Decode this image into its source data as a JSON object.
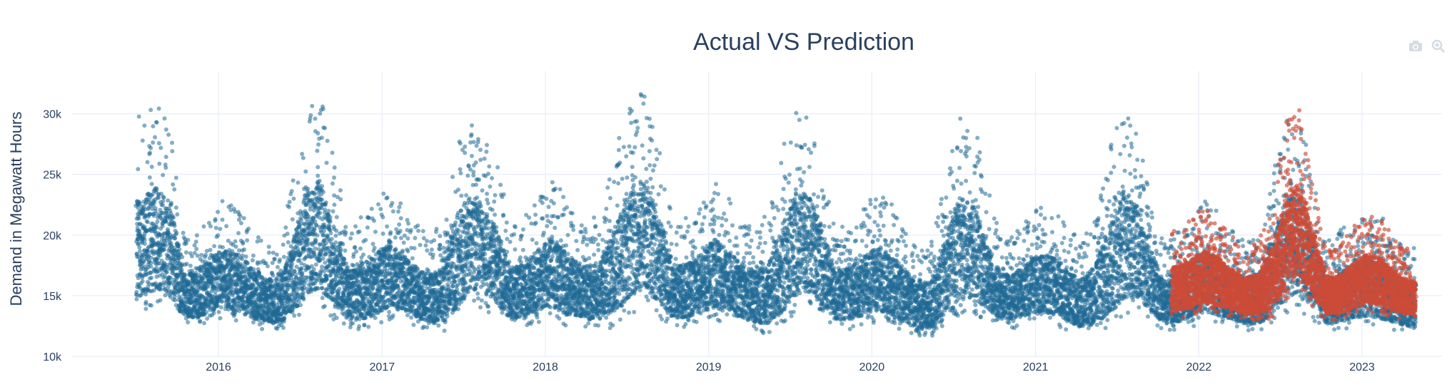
{
  "chart_data": {
    "type": "scatter",
    "title": "Actual VS Prediction",
    "xlabel": "",
    "ylabel": "Demand in Megawatt Hours",
    "x_tick_labels": [
      "2016",
      "2017",
      "2018",
      "2019",
      "2020",
      "2021",
      "2022",
      "2023"
    ],
    "y_tick_labels": [
      "10k",
      "15k",
      "20k",
      "25k",
      "30k"
    ],
    "xlim": [
      "2015-01-01",
      "2023-12-31"
    ],
    "ylim": [
      10000,
      33500
    ],
    "grid": true,
    "legend": "none",
    "colors": {
      "actual": "#1f6a96",
      "prediction": "#cc4b37"
    },
    "series": [
      {
        "role": "actual",
        "x_range": [
          "2015-07-01",
          "2023-05-01"
        ],
        "monthly_envelope": {
          "x": [
            "2015-07",
            "2015-08",
            "2015-09",
            "2015-10",
            "2015-11",
            "2015-12",
            "2016-01",
            "2016-02",
            "2016-03",
            "2016-04",
            "2016-05",
            "2016-06",
            "2016-07",
            "2016-08",
            "2016-09",
            "2016-10",
            "2016-11",
            "2016-12",
            "2017-01",
            "2017-02",
            "2017-03",
            "2017-04",
            "2017-05",
            "2017-06",
            "2017-07",
            "2017-08",
            "2017-09",
            "2017-10",
            "2017-11",
            "2017-12",
            "2018-01",
            "2018-02",
            "2018-03",
            "2018-04",
            "2018-05",
            "2018-06",
            "2018-07",
            "2018-08",
            "2018-09",
            "2018-10",
            "2018-11",
            "2018-12",
            "2019-01",
            "2019-02",
            "2019-03",
            "2019-04",
            "2019-05",
            "2019-06",
            "2019-07",
            "2019-08",
            "2019-09",
            "2019-10",
            "2019-11",
            "2019-12",
            "2020-01",
            "2020-02",
            "2020-03",
            "2020-04",
            "2020-05",
            "2020-06",
            "2020-07",
            "2020-08",
            "2020-09",
            "2020-10",
            "2020-11",
            "2020-12",
            "2021-01",
            "2021-02",
            "2021-03",
            "2021-04",
            "2021-05",
            "2021-06",
            "2021-07",
            "2021-08",
            "2021-09",
            "2021-10",
            "2021-11",
            "2021-12",
            "2022-01",
            "2022-02",
            "2022-03",
            "2022-04",
            "2022-05",
            "2022-06",
            "2022-07",
            "2022-08",
            "2022-09",
            "2022-10",
            "2022-11",
            "2022-12",
            "2023-01",
            "2023-02",
            "2023-03",
            "2023-04"
          ],
          "low": [
            13500,
            14000,
            13500,
            12500,
            12500,
            12800,
            13000,
            12800,
            12300,
            12200,
            12000,
            12500,
            13500,
            14000,
            13000,
            12300,
            12200,
            12500,
            13000,
            12800,
            12500,
            12000,
            11900,
            12500,
            14000,
            14000,
            13000,
            12300,
            12500,
            12800,
            13000,
            12500,
            12500,
            12200,
            12100,
            12500,
            13500,
            14000,
            13000,
            12300,
            12400,
            12800,
            13000,
            12600,
            12400,
            12000,
            11800,
            12300,
            13500,
            14000,
            13000,
            12200,
            12200,
            12500,
            12800,
            12400,
            11900,
            11600,
            11500,
            12000,
            13000,
            13500,
            12800,
            12200,
            12300,
            12500,
            12800,
            12500,
            12000,
            11800,
            11800,
            12200,
            13000,
            13500,
            12800,
            12000,
            12100,
            12400,
            12700,
            12500,
            12200,
            12000,
            11900,
            12300,
            13000,
            13800,
            12800,
            12000,
            12100,
            12300,
            12500,
            12200,
            12000,
            11800
          ],
          "high": [
            30000,
            31000,
            29500,
            20000,
            20500,
            22000,
            23000,
            22500,
            21000,
            19500,
            19000,
            24500,
            31000,
            32000,
            26000,
            21000,
            21500,
            22500,
            24000,
            22500,
            21000,
            20000,
            21000,
            28000,
            29500,
            28500,
            26000,
            20500,
            21500,
            23000,
            25000,
            23000,
            21500,
            21000,
            23500,
            28000,
            31500,
            31800,
            27000,
            21000,
            21500,
            22500,
            24500,
            23000,
            21500,
            20500,
            22000,
            27000,
            30500,
            30000,
            25000,
            20500,
            21000,
            22500,
            23500,
            22500,
            21000,
            19000,
            19500,
            25000,
            30500,
            29500,
            24000,
            20000,
            20500,
            21500,
            22500,
            22000,
            20500,
            19500,
            21500,
            27000,
            31000,
            29000,
            23000,
            19500,
            20500,
            21500,
            23000,
            22000,
            20500,
            19500,
            20500,
            25000,
            30500,
            29500,
            25000,
            19500,
            20500,
            21500,
            22000,
            21500,
            20000,
            19000
          ]
        }
      },
      {
        "role": "prediction",
        "x_range": [
          "2021-11-01",
          "2023-05-01"
        ],
        "monthly_envelope": {
          "x": [
            "2021-11",
            "2021-12",
            "2022-01",
            "2022-02",
            "2022-03",
            "2022-04",
            "2022-05",
            "2022-06",
            "2022-07",
            "2022-08",
            "2022-09",
            "2022-10",
            "2022-11",
            "2022-12",
            "2023-01",
            "2023-02",
            "2023-03",
            "2023-04"
          ],
          "low": [
            13000,
            13300,
            13600,
            13400,
            13200,
            13000,
            12900,
            13100,
            14500,
            15500,
            14000,
            12900,
            13000,
            13300,
            13600,
            13400,
            13100,
            12900
          ],
          "high": [
            20500,
            21500,
            22400,
            21500,
            20000,
            19000,
            19500,
            23000,
            29500,
            30500,
            24500,
            18800,
            19500,
            21000,
            22000,
            21300,
            19800,
            18800
          ]
        }
      }
    ]
  },
  "modebar": {
    "icons": [
      "camera-icon",
      "zoom-icon"
    ]
  }
}
